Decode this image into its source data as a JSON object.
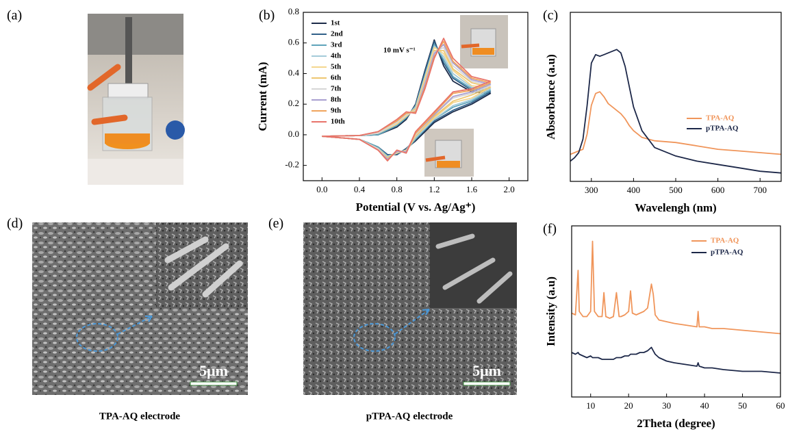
{
  "figure": {
    "panel_labels": [
      "(a)",
      "(d)",
      "(e)"
    ],
    "sem": [
      {
        "caption": "TPA-AQ electrode",
        "scale_bar": "5μm"
      },
      {
        "caption": "pTPA-AQ electrode",
        "scale_bar": "5μm"
      }
    ]
  },
  "chart_data": [
    {
      "type": "line",
      "label": "(b)",
      "x_label": "Potential (V vs. Ag/Ag⁺)",
      "y_label": "Current (mA)",
      "annotation": "10 mV s⁻¹",
      "xlim": [
        -0.2,
        2.2
      ],
      "ylim": [
        -0.3,
        0.8
      ],
      "xticks": [
        {
          "value": 0,
          "label": "0.0"
        },
        0.4,
        0.8,
        1.2,
        1.6,
        {
          "value": 2,
          "label": "2.0"
        }
      ],
      "yticks": [
        -0.2,
        {
          "value": 0,
          "label": "0.0"
        },
        0.2,
        0.4,
        0.6,
        0.8
      ],
      "legend": "upper left",
      "x": [
        0,
        0.4,
        0.6,
        0.8,
        0.9,
        1.0,
        1.1,
        1.2,
        1.3,
        1.4,
        1.6,
        1.8,
        1.6,
        1.4,
        1.2,
        1.0,
        0.9,
        0.8,
        0.7,
        0.6,
        0.4,
        0
      ],
      "series": [
        {
          "name": "1st",
          "color": "#1b2a48",
          "values": [
            -0.01,
            -0.005,
            0,
            0.05,
            0.1,
            0.2,
            0.42,
            0.62,
            0.45,
            0.35,
            0.28,
            0.27,
            0.2,
            0.15,
            0.08,
            -0.04,
            -0.09,
            -0.13,
            -0.13,
            -0.08,
            -0.03,
            -0.01
          ]
        },
        {
          "name": "2nd",
          "color": "#2f5f88",
          "values": [
            -0.01,
            -0.005,
            0,
            0.06,
            0.11,
            0.19,
            0.41,
            0.61,
            0.47,
            0.37,
            0.29,
            0.28,
            0.21,
            0.16,
            0.09,
            -0.03,
            -0.09,
            -0.13,
            -0.13,
            -0.08,
            -0.03,
            -0.01
          ]
        },
        {
          "name": "3rd",
          "color": "#5ea3ba",
          "values": [
            -0.01,
            -0.005,
            0,
            0.06,
            0.11,
            0.19,
            0.39,
            0.59,
            0.49,
            0.38,
            0.3,
            0.29,
            0.22,
            0.18,
            0.1,
            -0.03,
            -0.1,
            -0.12,
            -0.14,
            -0.08,
            -0.03,
            -0.01
          ]
        },
        {
          "name": "4th",
          "color": "#a3cbd9",
          "values": [
            -0.01,
            -0.005,
            0.01,
            0.07,
            0.12,
            0.18,
            0.38,
            0.58,
            0.51,
            0.4,
            0.31,
            0.3,
            0.23,
            0.19,
            0.1,
            -0.02,
            -0.1,
            -0.12,
            -0.14,
            -0.09,
            -0.03,
            -0.01
          ]
        },
        {
          "name": "5th",
          "color": "#f4d68e",
          "values": [
            -0.01,
            -0.005,
            0.01,
            0.07,
            0.12,
            0.17,
            0.37,
            0.57,
            0.53,
            0.42,
            0.32,
            0.31,
            0.24,
            0.21,
            0.11,
            -0.01,
            -0.1,
            -0.12,
            -0.15,
            -0.09,
            -0.03,
            -0.01
          ]
        },
        {
          "name": "6th",
          "color": "#eec670",
          "values": [
            -0.01,
            -0.005,
            0.01,
            0.08,
            0.13,
            0.17,
            0.35,
            0.55,
            0.55,
            0.43,
            0.34,
            0.31,
            0.26,
            0.22,
            0.12,
            -0.01,
            -0.11,
            -0.11,
            -0.15,
            -0.09,
            -0.03,
            -0.01
          ]
        },
        {
          "name": "7th",
          "color": "#d6d6d6",
          "values": [
            -0.01,
            -0.005,
            0.01,
            0.08,
            0.13,
            0.16,
            0.34,
            0.54,
            0.57,
            0.45,
            0.35,
            0.32,
            0.27,
            0.24,
            0.13,
            0,
            -0.11,
            -0.11,
            -0.16,
            -0.09,
            -0.03,
            -0.01
          ]
        },
        {
          "name": "8th",
          "color": "#a89ed0",
          "values": [
            -0.01,
            -0.005,
            0.02,
            0.09,
            0.14,
            0.15,
            0.33,
            0.53,
            0.59,
            0.47,
            0.36,
            0.33,
            0.28,
            0.25,
            0.13,
            0.01,
            -0.11,
            -0.11,
            -0.16,
            -0.1,
            -0.03,
            -0.01
          ]
        },
        {
          "name": "9th",
          "color": "#f0a45c",
          "values": [
            -0.01,
            -0.005,
            0.02,
            0.09,
            0.14,
            0.15,
            0.31,
            0.51,
            0.61,
            0.48,
            0.37,
            0.34,
            0.29,
            0.27,
            0.14,
            0.01,
            -0.12,
            -0.1,
            -0.17,
            -0.1,
            -0.03,
            -0.01
          ]
        },
        {
          "name": "10th",
          "color": "#e8736a",
          "values": [
            -0.01,
            -0.005,
            0.02,
            0.1,
            0.15,
            0.14,
            0.3,
            0.5,
            0.63,
            0.5,
            0.38,
            0.35,
            0.3,
            0.28,
            0.15,
            0.02,
            -0.12,
            -0.1,
            -0.17,
            -0.1,
            -0.03,
            -0.01
          ]
        }
      ]
    },
    {
      "type": "line",
      "label": "(c)",
      "x_label": "Wavelengh (nm)",
      "y_label": "Absorbance (a.u)",
      "xlim": [
        250,
        750
      ],
      "ylim": [
        0,
        1
      ],
      "xticks": [
        300,
        400,
        500,
        600,
        700
      ],
      "legend": "center right",
      "x": [
        250,
        260,
        270,
        280,
        290,
        300,
        310,
        320,
        330,
        340,
        350,
        360,
        370,
        380,
        390,
        400,
        420,
        450,
        500,
        550,
        600,
        650,
        700,
        750
      ],
      "series": [
        {
          "name": "TPA-AQ",
          "color": "#f0955a",
          "values": [
            0.16,
            0.17,
            0.18,
            0.19,
            0.28,
            0.45,
            0.52,
            0.53,
            0.5,
            0.46,
            0.44,
            0.42,
            0.4,
            0.37,
            0.33,
            0.3,
            0.26,
            0.24,
            0.23,
            0.21,
            0.19,
            0.18,
            0.17,
            0.16
          ]
        },
        {
          "name": "pTPA-AQ",
          "color": "#1c2748",
          "values": [
            0.12,
            0.14,
            0.17,
            0.25,
            0.45,
            0.7,
            0.75,
            0.74,
            0.75,
            0.76,
            0.77,
            0.78,
            0.76,
            0.68,
            0.56,
            0.44,
            0.3,
            0.2,
            0.15,
            0.12,
            0.1,
            0.08,
            0.06,
            0.05
          ]
        }
      ]
    },
    {
      "type": "line",
      "label": "(f)",
      "x_label": "2Theta (degree)",
      "y_label": "Intensity (a.u)",
      "xlim": [
        5,
        60
      ],
      "ylim": [
        0,
        1
      ],
      "xticks": [
        10,
        20,
        30,
        40,
        50,
        60
      ],
      "legend": "upper right",
      "x": [
        5,
        6,
        6.7,
        7,
        8,
        9,
        10,
        10.5,
        11,
        12,
        13,
        13.5,
        14,
        15,
        16,
        16.8,
        17.5,
        18,
        19,
        20,
        20.5,
        21,
        22,
        23,
        24,
        25,
        26,
        26.5,
        27,
        28,
        30,
        32,
        35,
        38,
        38.3,
        38.6,
        40,
        42,
        45,
        50,
        55,
        60
      ],
      "series": [
        {
          "name": "TPA-AQ",
          "color": "#f0955a",
          "values": [
            0.49,
            0.48,
            0.74,
            0.5,
            0.47,
            0.47,
            0.5,
            0.91,
            0.5,
            0.47,
            0.47,
            0.61,
            0.47,
            0.46,
            0.47,
            0.61,
            0.47,
            0.47,
            0.48,
            0.5,
            0.62,
            0.49,
            0.48,
            0.49,
            0.5,
            0.52,
            0.66,
            0.6,
            0.48,
            0.45,
            0.44,
            0.43,
            0.42,
            0.41,
            0.5,
            0.41,
            0.41,
            0.4,
            0.4,
            0.39,
            0.38,
            0.37
          ]
        },
        {
          "name": "pTPA-AQ",
          "color": "#1c2748",
          "values": [
            0.26,
            0.25,
            0.26,
            0.25,
            0.24,
            0.23,
            0.24,
            0.23,
            0.23,
            0.23,
            0.22,
            0.22,
            0.22,
            0.22,
            0.22,
            0.23,
            0.23,
            0.23,
            0.24,
            0.24,
            0.25,
            0.25,
            0.25,
            0.26,
            0.26,
            0.27,
            0.29,
            0.27,
            0.25,
            0.23,
            0.21,
            0.2,
            0.19,
            0.18,
            0.2,
            0.18,
            0.17,
            0.17,
            0.16,
            0.15,
            0.15,
            0.14
          ]
        }
      ]
    }
  ]
}
